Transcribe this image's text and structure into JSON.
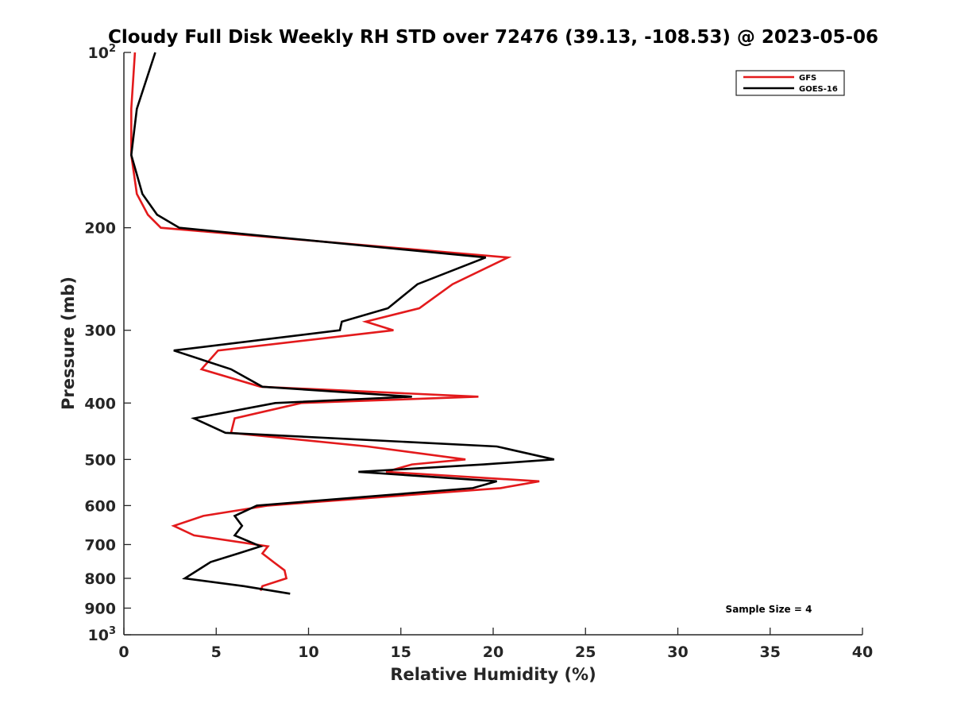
{
  "chart_data": {
    "type": "line",
    "title": "Cloudy Full Disk Weekly RH STD over 72476 (39.13, -108.53) @ 2023-05-06",
    "xlabel": "Relative Humidity (%)",
    "ylabel": "Pressure (mb)",
    "xlim": [
      0,
      40
    ],
    "ylim": [
      100,
      1000
    ],
    "y_scale": "log",
    "y_reversed": true,
    "grid": false,
    "legend_position": "top-right",
    "x_ticks": [
      0,
      5,
      10,
      15,
      20,
      25,
      30,
      35,
      40
    ],
    "x_tick_labels": [
      "0",
      "5",
      "10",
      "15",
      "20",
      "25",
      "30",
      "35",
      "40"
    ],
    "y_ticks": [
      {
        "value": 100,
        "base": "10",
        "sup": "2"
      },
      {
        "value": 200,
        "base": "200",
        "sup": ""
      },
      {
        "value": 300,
        "base": "300",
        "sup": ""
      },
      {
        "value": 400,
        "base": "400",
        "sup": ""
      },
      {
        "value": 500,
        "base": "500",
        "sup": ""
      },
      {
        "value": 600,
        "base": "600",
        "sup": ""
      },
      {
        "value": 700,
        "base": "700",
        "sup": ""
      },
      {
        "value": 800,
        "base": "800",
        "sup": ""
      },
      {
        "value": 900,
        "base": "900",
        "sup": ""
      },
      {
        "value": 1000,
        "base": "10",
        "sup": "3"
      }
    ],
    "series": [
      {
        "name": "GFS",
        "color": "#e31a1c",
        "points": [
          [
            0.6,
            100
          ],
          [
            0.4,
            125
          ],
          [
            0.4,
            150
          ],
          [
            0.7,
            175
          ],
          [
            1.3,
            190
          ],
          [
            2.0,
            200
          ],
          [
            20.8,
            225
          ],
          [
            17.8,
            250
          ],
          [
            16.0,
            275
          ],
          [
            13.1,
            290
          ],
          [
            14.6,
            300
          ],
          [
            5.1,
            325
          ],
          [
            4.2,
            350
          ],
          [
            7.4,
            375
          ],
          [
            19.2,
            390
          ],
          [
            9.6,
            400
          ],
          [
            6.0,
            425
          ],
          [
            5.8,
            450
          ],
          [
            13.2,
            475
          ],
          [
            18.5,
            500
          ],
          [
            15.6,
            510
          ],
          [
            14.2,
            525
          ],
          [
            22.5,
            545
          ],
          [
            20.4,
            560
          ],
          [
            7.8,
            600
          ],
          [
            4.3,
            625
          ],
          [
            2.7,
            650
          ],
          [
            3.8,
            675
          ],
          [
            7.8,
            705
          ],
          [
            7.5,
            725
          ],
          [
            8.1,
            750
          ],
          [
            8.7,
            775
          ],
          [
            8.8,
            800
          ],
          [
            7.5,
            825
          ],
          [
            7.4,
            840
          ]
        ]
      },
      {
        "name": "GOES-16",
        "color": "#000000",
        "points": [
          [
            1.7,
            100
          ],
          [
            0.7,
            125
          ],
          [
            0.4,
            150
          ],
          [
            1.0,
            175
          ],
          [
            1.8,
            190
          ],
          [
            3.0,
            200
          ],
          [
            19.6,
            225
          ],
          [
            15.9,
            250
          ],
          [
            14.3,
            275
          ],
          [
            11.8,
            290
          ],
          [
            11.7,
            300
          ],
          [
            2.7,
            325
          ],
          [
            5.8,
            350
          ],
          [
            7.5,
            375
          ],
          [
            15.6,
            390
          ],
          [
            8.2,
            400
          ],
          [
            3.8,
            425
          ],
          [
            5.5,
            450
          ],
          [
            20.2,
            475
          ],
          [
            23.3,
            500
          ],
          [
            19.5,
            510
          ],
          [
            12.7,
            525
          ],
          [
            20.2,
            545
          ],
          [
            18.9,
            560
          ],
          [
            7.2,
            600
          ],
          [
            6.0,
            625
          ],
          [
            6.4,
            650
          ],
          [
            6.0,
            675
          ],
          [
            7.4,
            705
          ],
          [
            6.2,
            725
          ],
          [
            4.7,
            750
          ],
          [
            3.3,
            800
          ],
          [
            6.5,
            825
          ],
          [
            9.0,
            850
          ]
        ]
      }
    ],
    "annotation": "Sample Size = 4"
  }
}
